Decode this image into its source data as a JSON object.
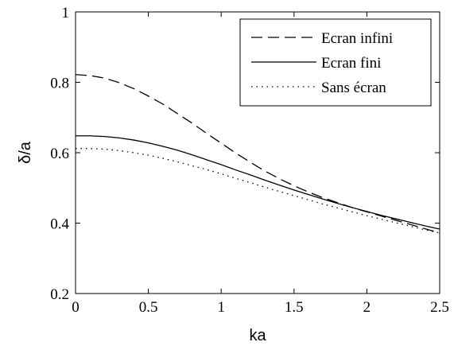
{
  "chart_data": {
    "type": "line",
    "title": "",
    "xlabel": "ka",
    "ylabel": "δ/a",
    "xlim": [
      0,
      2.5
    ],
    "ylim": [
      0.2,
      1
    ],
    "grid": false,
    "legend_position": "top-right",
    "x_ticks": [
      {
        "value": 0,
        "label": "0"
      },
      {
        "value": 0.5,
        "label": "0.5"
      },
      {
        "value": 1,
        "label": "1"
      },
      {
        "value": 1.5,
        "label": "1.5"
      },
      {
        "value": 2,
        "label": "2"
      },
      {
        "value": 2.5,
        "label": "2.5"
      }
    ],
    "y_ticks": [
      {
        "value": 0.2,
        "label": "0.2"
      },
      {
        "value": 0.4,
        "label": "0.4"
      },
      {
        "value": 0.6,
        "label": "0.6"
      },
      {
        "value": 0.8,
        "label": "0.8"
      },
      {
        "value": 1,
        "label": "1"
      }
    ],
    "series": [
      {
        "name": "Ecran infini",
        "style": "dashed",
        "color": "#000000",
        "x": [
          0,
          0.1,
          0.2,
          0.3,
          0.4,
          0.5,
          0.6,
          0.7,
          0.8,
          0.9,
          1.0,
          1.1,
          1.2,
          1.3,
          1.4,
          1.5,
          1.6,
          1.7,
          1.8,
          1.9,
          2.0,
          2.1,
          2.2,
          2.3,
          2.4,
          2.5
        ],
        "y": [
          0.822,
          0.819,
          0.812,
          0.799,
          0.782,
          0.761,
          0.738,
          0.711,
          0.684,
          0.655,
          0.627,
          0.599,
          0.573,
          0.548,
          0.526,
          0.506,
          0.488,
          0.472,
          0.458,
          0.444,
          0.432,
          0.42,
          0.408,
          0.396,
          0.384,
          0.372
        ]
      },
      {
        "name": "Ecran fini",
        "style": "solid",
        "color": "#000000",
        "x": [
          0,
          0.1,
          0.2,
          0.3,
          0.4,
          0.5,
          0.6,
          0.7,
          0.8,
          0.9,
          1.0,
          1.1,
          1.2,
          1.3,
          1.4,
          1.5,
          1.6,
          1.7,
          1.8,
          1.9,
          2.0,
          2.1,
          2.2,
          2.3,
          2.4,
          2.5
        ],
        "y": [
          0.648,
          0.648,
          0.646,
          0.642,
          0.636,
          0.628,
          0.618,
          0.607,
          0.594,
          0.58,
          0.566,
          0.551,
          0.537,
          0.522,
          0.508,
          0.494,
          0.481,
          0.468,
          0.456,
          0.444,
          0.433,
          0.422,
          0.412,
          0.402,
          0.392,
          0.383
        ]
      },
      {
        "name": "Sans écran",
        "style": "dotted",
        "color": "#000000",
        "x": [
          0,
          0.1,
          0.2,
          0.3,
          0.4,
          0.5,
          0.6,
          0.7,
          0.8,
          0.9,
          1.0,
          1.1,
          1.2,
          1.3,
          1.4,
          1.5,
          1.6,
          1.7,
          1.8,
          1.9,
          2.0,
          2.1,
          2.2,
          2.3,
          2.4,
          2.5
        ],
        "y": [
          0.612,
          0.612,
          0.61,
          0.606,
          0.6,
          0.593,
          0.584,
          0.574,
          0.563,
          0.552,
          0.54,
          0.527,
          0.515,
          0.502,
          0.49,
          0.478,
          0.466,
          0.454,
          0.443,
          0.432,
          0.421,
          0.411,
          0.401,
          0.391,
          0.381,
          0.372
        ]
      }
    ]
  }
}
